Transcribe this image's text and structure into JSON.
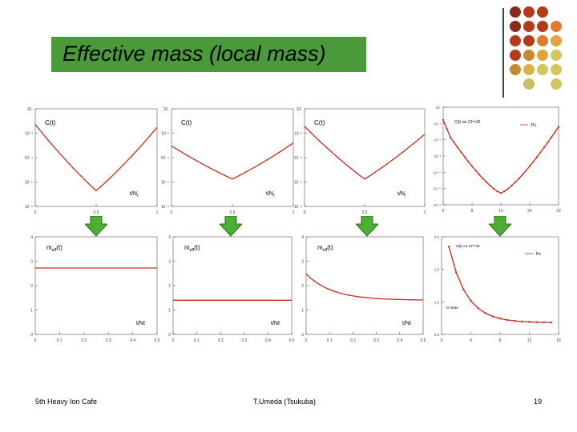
{
  "title": "Effective mass (local mass)",
  "footer": {
    "left": "5th Heavy Ion Cafe",
    "center": "T.Umeda (Tsukuba)",
    "page": "19"
  },
  "colors": {
    "title_bg": "#4a9a3c",
    "curve": "#d0281c",
    "arrow": "#4cae33",
    "arrow_edge": "#2e6e1e"
  },
  "decor_dots": [
    [
      "#8b2a1a",
      "#b5391b",
      "#b5391b",
      "#ffffff"
    ],
    [
      "#8b2a1a",
      "#b5391b",
      "#b5391b",
      "#e07a2e"
    ],
    [
      "#b5391b",
      "#b5391b",
      "#e07a2e",
      "#e8a040"
    ],
    [
      "#b5391b",
      "#c8892c",
      "#e0a53a",
      "#d4c65e"
    ],
    [
      "#c8892c",
      "#d9b04a",
      "#d4c65e",
      "#d4c65e"
    ],
    [
      "#ffffff",
      "#c8c060",
      "#ffffff",
      "#d4c65e"
    ]
  ],
  "top_row": [
    {
      "label": "C(t)",
      "axis_label": "t/N",
      "axis_sub": "t",
      "yticks": [
        "10·",
        "10⁻²",
        "10⁻⁴",
        "10⁻⁶",
        "10⁻⁸"
      ],
      "xticks": [
        "0",
        "0.5",
        "1"
      ]
    },
    {
      "label": "C(t)",
      "axis_label": "t/N",
      "axis_sub": "t",
      "yticks": [
        "10·",
        "10⁻²",
        "10⁻⁴",
        "10⁻⁶",
        "10⁻⁸"
      ],
      "xticks": [
        "0",
        "0.5",
        "1"
      ]
    },
    {
      "label": "C(t)",
      "axis_label": "t/N",
      "axis_sub": "t",
      "yticks": [
        "10·",
        "10⁻²",
        "10⁻⁴",
        "10⁻⁶",
        "10⁻⁸"
      ],
      "xticks": [
        "0",
        "0.5",
        "1"
      ]
    },
    {
      "label": "C(t) on 12³×32",
      "legend": "Ps",
      "yticks": [
        "10·",
        "10⁻¹",
        "10⁻²",
        "10⁻³",
        "10⁻⁴",
        "10⁻⁵",
        "10⁻⁶"
      ],
      "xticks": [
        "0",
        "8",
        "16",
        "24",
        "32"
      ]
    }
  ],
  "bottom_row": [
    {
      "label": "m",
      "label_sub": "eff",
      "label_tail": "(t)",
      "axis_label": "t/Nt",
      "yticks": [
        "4",
        "3",
        "2",
        "1",
        "0"
      ],
      "xticks": [
        "0",
        "0.1",
        "0.2",
        "0.3",
        "0.4",
        "0.5"
      ]
    },
    {
      "label": "m",
      "label_sub": "eff",
      "label_tail": "(t)",
      "axis_label": "t/Nt",
      "yticks": [
        "4",
        "3",
        "2",
        "1",
        "0"
      ],
      "xticks": [
        "0",
        "0.1",
        "0.2",
        "0.3",
        "0.4",
        "0.5"
      ]
    },
    {
      "label": "m",
      "label_sub": "eff",
      "label_tail": "(t)",
      "axis_label": "t/Nt",
      "yticks": [
        "4",
        "3",
        "2",
        "1",
        "0"
      ],
      "xticks": [
        "0",
        "0.1",
        "0.2",
        "0.3",
        "0.4",
        "0.5"
      ]
    },
    {
      "label": "m(t) on 12³×32",
      "legend": "Ps",
      "note": "G-state",
      "yticks": [
        "2.0",
        "1.5",
        "1.0",
        "0.5"
      ],
      "xticks": [
        "0",
        "4",
        "8",
        "12",
        "16"
      ]
    }
  ]
}
